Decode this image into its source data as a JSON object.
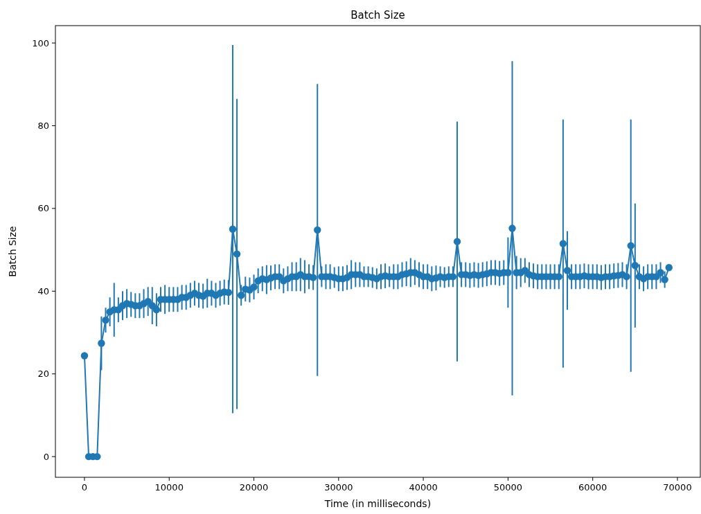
{
  "chart_data": {
    "type": "line",
    "title": "Batch Size",
    "xlabel": "Time (in milliseconds)",
    "ylabel": "Batch Size",
    "x": [
      0,
      500,
      1000,
      1500,
      2000,
      2500,
      3000,
      3500,
      4000,
      4500,
      5000,
      5500,
      6000,
      6500,
      7000,
      7500,
      8000,
      8500,
      9000,
      9500,
      10000,
      10500,
      11000,
      11500,
      12000,
      12500,
      13000,
      13500,
      14000,
      14500,
      15000,
      15500,
      16000,
      16500,
      17000,
      17500,
      18000,
      18500,
      19000,
      19500,
      20000,
      20500,
      21000,
      21500,
      22000,
      22500,
      23000,
      23500,
      24000,
      24500,
      25000,
      25500,
      26000,
      26500,
      27000,
      27500,
      28000,
      28500,
      29000,
      29500,
      30000,
      30500,
      31000,
      31500,
      32000,
      32500,
      33000,
      33500,
      34000,
      34500,
      35000,
      35500,
      36000,
      36500,
      37000,
      37500,
      38000,
      38500,
      39000,
      39500,
      40000,
      40500,
      41000,
      41500,
      42000,
      42500,
      43000,
      43500,
      44000,
      44500,
      45000,
      45500,
      46000,
      46500,
      47000,
      47500,
      48000,
      48500,
      49000,
      49500,
      50000,
      50500,
      51000,
      51500,
      52000,
      52500,
      53000,
      53500,
      54000,
      54500,
      55000,
      55500,
      56000,
      56500,
      57000,
      57500,
      58000,
      58500,
      59000,
      59500,
      60000,
      60500,
      61000,
      61500,
      62000,
      62500,
      63000,
      63500,
      64000,
      64500,
      65000,
      65500,
      66000,
      66500,
      67000,
      67500,
      68000,
      68500,
      69000
    ],
    "series": [
      {
        "color": "#1f77b4",
        "values": [
          24.4,
          0,
          0,
          0,
          27.4,
          33,
          35,
          35.5,
          35.5,
          36.5,
          37,
          36.8,
          36.5,
          36.5,
          37,
          37.5,
          36.5,
          35.5,
          38,
          38,
          38,
          38,
          38,
          38.5,
          38.5,
          39,
          39.5,
          39,
          38.8,
          39.5,
          39.5,
          39,
          39.5,
          39.8,
          39.7,
          55,
          49,
          39,
          40.5,
          40.3,
          41,
          42.5,
          43,
          42.8,
          43.2,
          43.5,
          43.5,
          42.5,
          43,
          43.5,
          43.5,
          44,
          43.5,
          43.5,
          43.3,
          54.8,
          43.5,
          43.5,
          43.5,
          43.3,
          43,
          43,
          43.3,
          44,
          44,
          44,
          43.5,
          43.5,
          43.3,
          43,
          43.5,
          43.7,
          43.5,
          43.5,
          43.5,
          44,
          44.2,
          44.5,
          44.5,
          44,
          43.5,
          43.5,
          43,
          43.2,
          43.5,
          43.3,
          43.5,
          43.5,
          52,
          44,
          44,
          43.8,
          44,
          43.8,
          44,
          44.2,
          44.5,
          44.5,
          44.3,
          44.5,
          44.5,
          55.2,
          44.5,
          44.5,
          45,
          44,
          43.7,
          43.5,
          43.5,
          43.5,
          43.5,
          43.5,
          43.5,
          51.5,
          45,
          43.5,
          43.5,
          43.5,
          43.7,
          43.5,
          43.5,
          43.5,
          43.3,
          43.5,
          43.5,
          43.7,
          43.8,
          44,
          43.5,
          51,
          46.2,
          43.5,
          43,
          43.5,
          43.5,
          43.5,
          44.5,
          42.8,
          45.7
        ],
        "errors": [
          null,
          null,
          null,
          null,
          6.5,
          3,
          3.5,
          6.5,
          3,
          3.5,
          3.5,
          3,
          3,
          3,
          3.5,
          3.5,
          4.5,
          4,
          3,
          3.5,
          3,
          3,
          3,
          3,
          3,
          3,
          3,
          3,
          3,
          3.5,
          3,
          3,
          3,
          3,
          3,
          44.5,
          37.5,
          2.5,
          3,
          3,
          3,
          3,
          3,
          3.5,
          3,
          3,
          3,
          3,
          3,
          3.5,
          3.5,
          4,
          4,
          3,
          3,
          35.3,
          2.5,
          3,
          3,
          2.5,
          3,
          3,
          3,
          3.5,
          3,
          3,
          2.5,
          2.5,
          2.5,
          2.5,
          3,
          3,
          2.5,
          3,
          3,
          3,
          3,
          3.5,
          3,
          3,
          3,
          3,
          3,
          3,
          2.5,
          2.5,
          2.5,
          2.5,
          29,
          3,
          3,
          3,
          3,
          3,
          3,
          3,
          3,
          3,
          3,
          3,
          8.5,
          40.4,
          4,
          3.5,
          3,
          3,
          3,
          3,
          3,
          3,
          3,
          3,
          3,
          30,
          9.5,
          3,
          3,
          3,
          3,
          3,
          3,
          3,
          3,
          3,
          3,
          3,
          3,
          3,
          3,
          30.5,
          15,
          3,
          3,
          3,
          3,
          3,
          2.5,
          2,
          null
        ]
      }
    ],
    "xlim": [
      -3430,
      72700
    ],
    "xticks": [
      0,
      10000,
      20000,
      30000,
      40000,
      50000,
      60000,
      70000
    ],
    "ylim": [
      -5,
      104.2
    ],
    "yticks": [
      0,
      20,
      40,
      60,
      80,
      100
    ],
    "marker": "circle",
    "line_style": "solid"
  }
}
